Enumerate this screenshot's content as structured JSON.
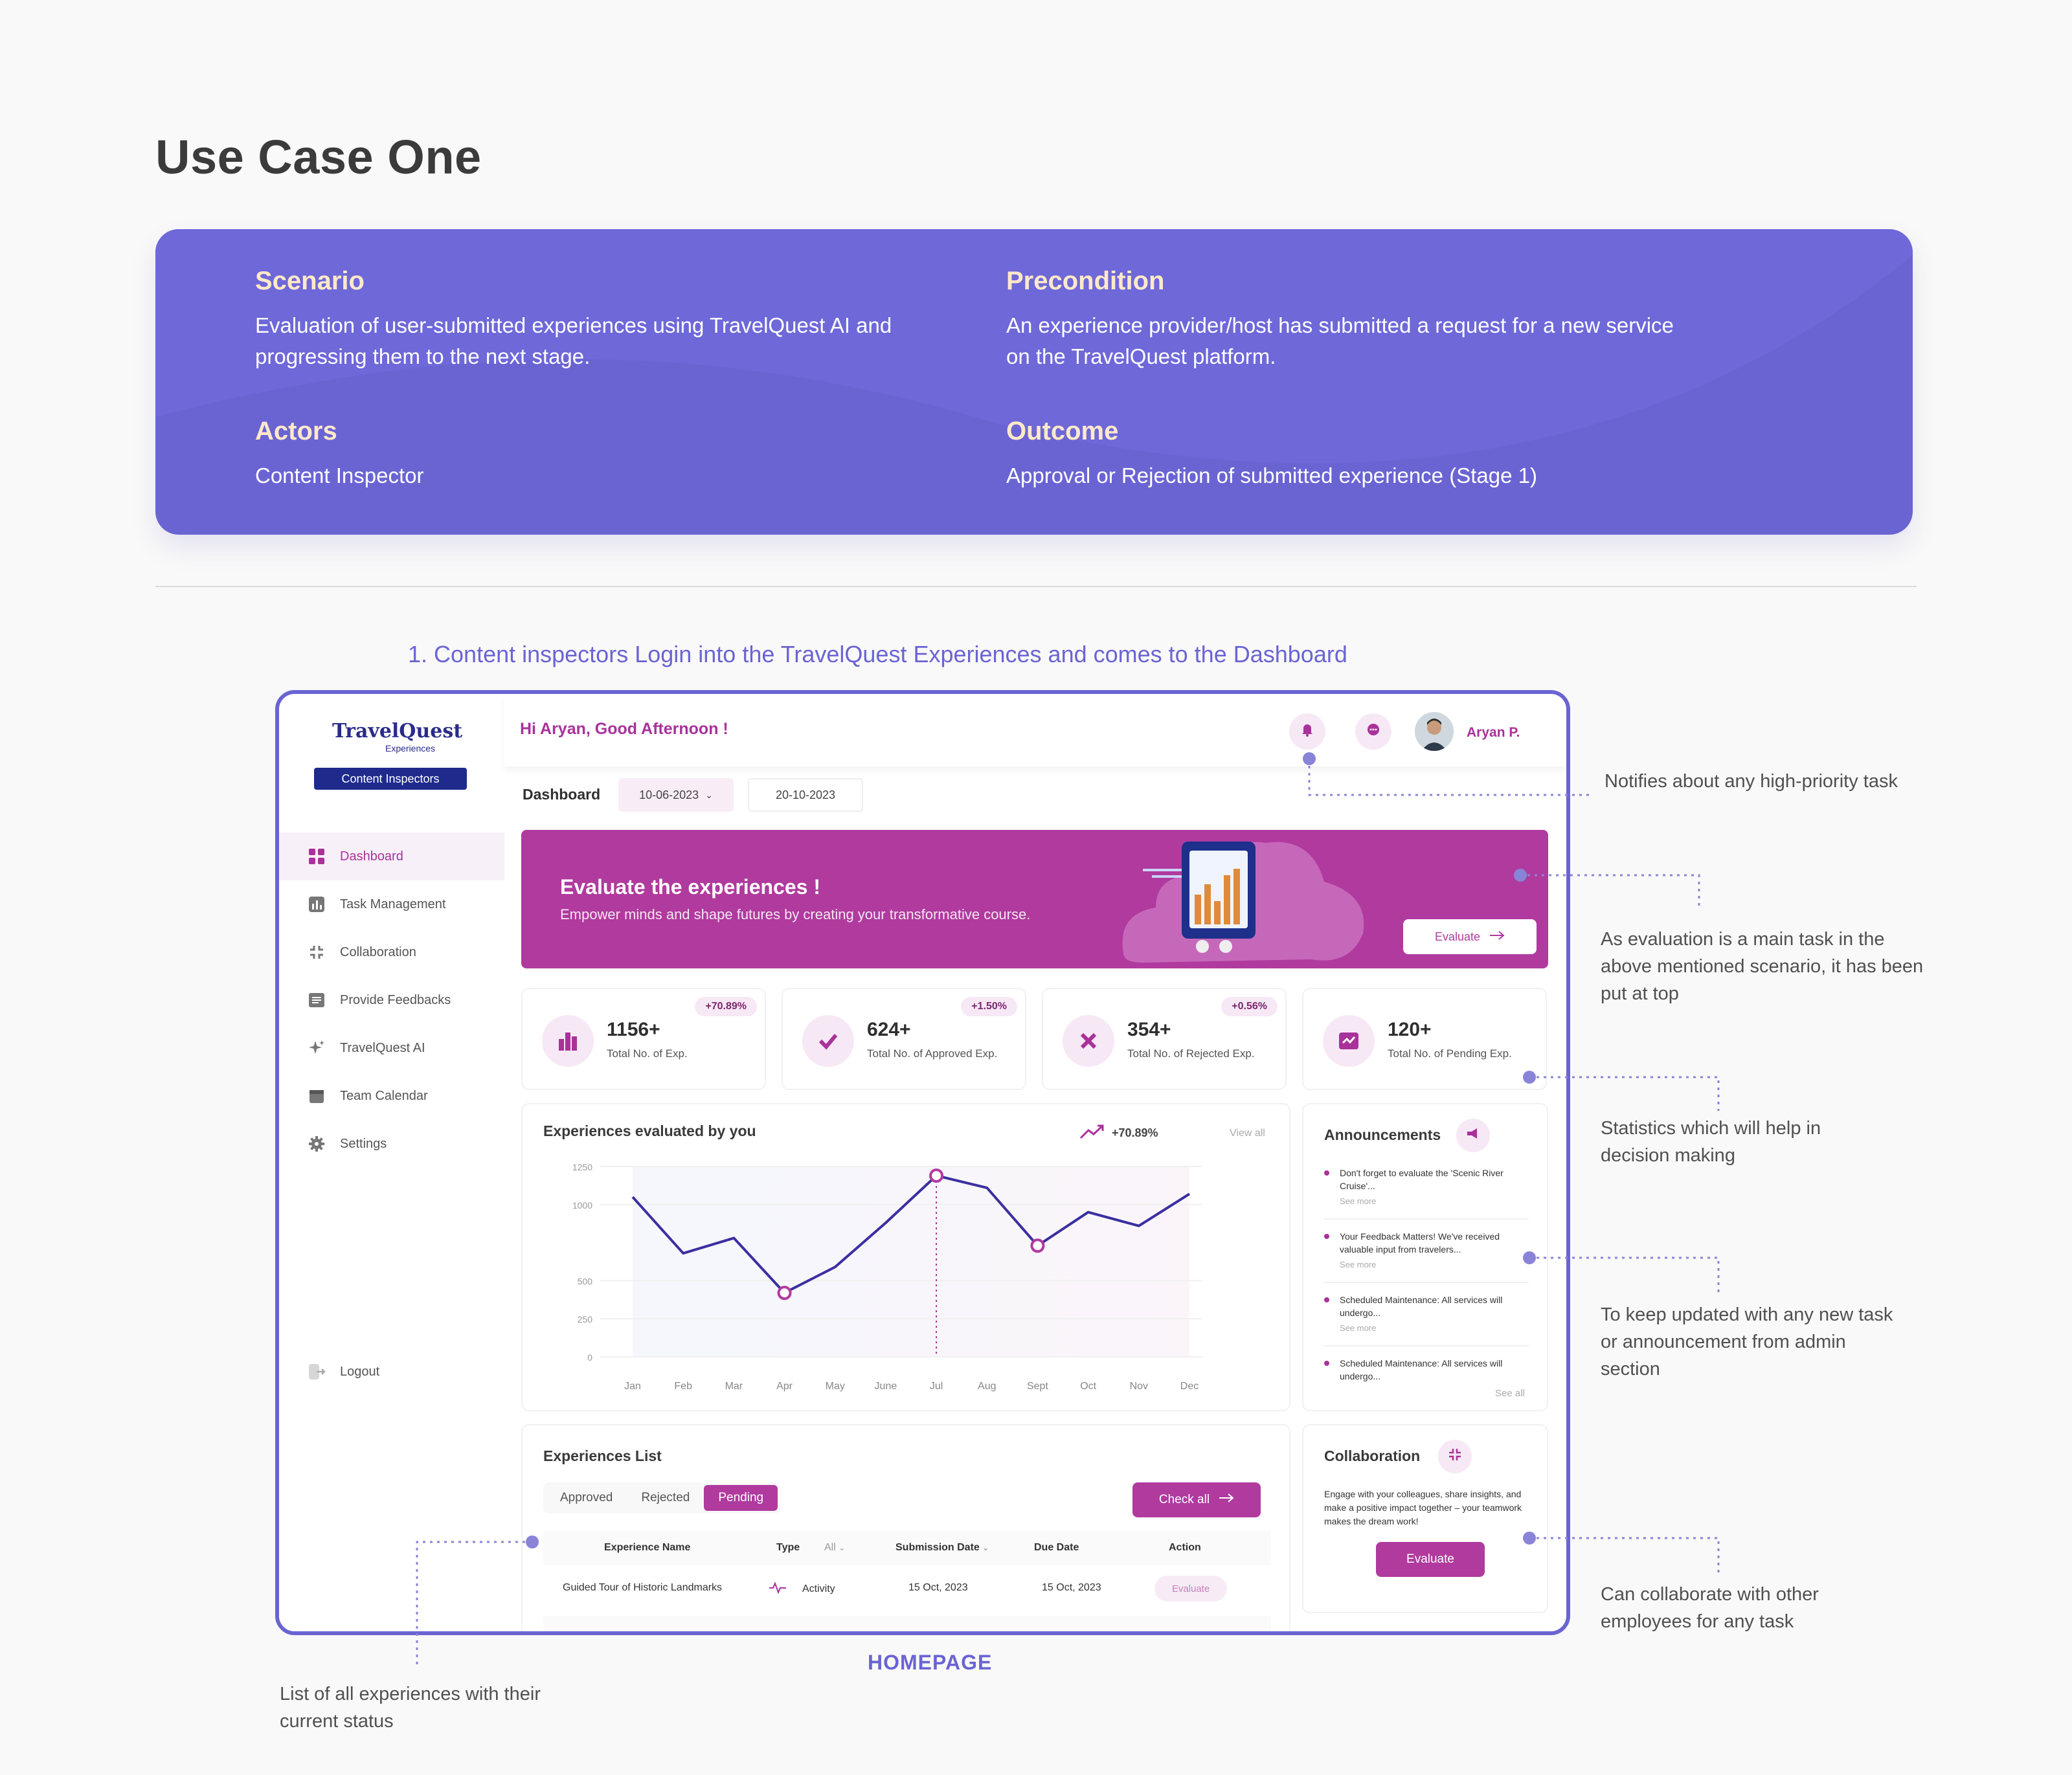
{
  "page_title": "Use Case One",
  "use_case": {
    "scenario_heading": "Scenario",
    "scenario_text": "Evaluation of user-submitted experiences using TravelQuest AI and progressing them to the next stage.",
    "precondition_heading": "Precondition",
    "precondition_text": "An experience provider/host has submitted a request for a new service on the TravelQuest platform.",
    "actors_heading": "Actors",
    "actors_text": "Content Inspector",
    "outcome_heading": "Outcome",
    "outcome_text": "Approval or Rejection of submitted experience (Stage 1)"
  },
  "step_title": "1. Content inspectors Login into the TravelQuest Experiences and comes to the Dashboard",
  "frame_label": "HOMEPAGE",
  "app": {
    "logo_main": "TravelQuest",
    "logo_sub": "Experiences",
    "role_badge": "Content Inspectors",
    "nav": [
      {
        "label": "Dashboard",
        "icon": "grid-icon",
        "active": true
      },
      {
        "label": "Task Management",
        "icon": "bar-chart-icon",
        "active": false
      },
      {
        "label": "Collaboration",
        "icon": "collaboration-icon",
        "active": false
      },
      {
        "label": "Provide Feedbacks",
        "icon": "feedback-icon",
        "active": false
      },
      {
        "label": "TravelQuest AI",
        "icon": "sparkle-icon",
        "active": false
      },
      {
        "label": "Team Calendar",
        "icon": "calendar-icon",
        "active": false
      },
      {
        "label": "Settings",
        "icon": "gear-icon",
        "active": false
      }
    ],
    "logout_label": "Logout",
    "greeting": "Hi Aryan, Good Afternoon !",
    "user_name": "Aryan P.",
    "dashboard_label": "Dashboard",
    "date_from": "10-06-2023",
    "date_to": "20-10-2023",
    "hero": {
      "title": "Evaluate the experiences !",
      "subtitle": "Empower minds and shape futures by creating your transformative course.",
      "button": "Evaluate"
    },
    "stats": [
      {
        "value": "1156+",
        "label": "Total No. of Exp.",
        "change": "+70.89%",
        "icon": "bar-chart-icon"
      },
      {
        "value": "624+",
        "label": "Total No. of Approved Exp.",
        "change": "+1.50%",
        "icon": "check-icon"
      },
      {
        "value": "354+",
        "label": "Total No. of Rejected Exp.",
        "change": "+0.56%",
        "icon": "close-icon"
      },
      {
        "value": "120+",
        "label": "Total No. of Pending Exp.",
        "change": "",
        "icon": "pending-icon"
      }
    ],
    "chart_panel": {
      "title": "Experiences evaluated by you",
      "trend": "+70.89%",
      "view_all": "View all"
    },
    "announcements": {
      "title": "Announcements",
      "items": [
        {
          "text": "Don't forget to evaluate the 'Scenic River Cruise'...",
          "more": "See more"
        },
        {
          "text": "Your Feedback Matters! We've received valuable input from travelers...",
          "more": "See more"
        },
        {
          "text": "Scheduled Maintenance: All services will undergo...",
          "more": "See more"
        },
        {
          "text": "Scheduled Maintenance: All services will undergo...",
          "more": ""
        }
      ],
      "see_all": "See all"
    },
    "experiences_list": {
      "title": "Experiences List",
      "tabs": [
        "Approved",
        "Rejected",
        "Pending"
      ],
      "active_tab": "Pending",
      "check_all": "Check all",
      "columns": {
        "name": "Experience Name",
        "type": "Type",
        "type_filter": "All",
        "submission": "Submission Date",
        "due": "Due Date",
        "action": "Action"
      },
      "rows": [
        {
          "name": "Guided Tour of Historic Landmarks",
          "type": "Activity",
          "submission": "15 Oct, 2023",
          "due": "15 Oct, 2023",
          "action": "Evaluate"
        }
      ]
    },
    "collaboration": {
      "title": "Collaboration",
      "text": "Engage with your colleagues, share insights, and make a positive impact together – your teamwork makes the dream work!",
      "button": "Evaluate"
    }
  },
  "callouts": {
    "notifications": "Notifies about any high-priority task",
    "evaluation": "As evaluation is a main task in the above mentioned scenario, it has been put at top",
    "statistics": "Statistics which will help in decision making",
    "announcements": "To keep updated with any new task or announcement from admin section",
    "collaboration": "Can collaborate with other employees for any task",
    "list": "List of all experiences with their current status"
  },
  "colors": {
    "accent": "#b03a9e",
    "brand_purple": "#6a64d3",
    "navy": "#1e2a8c",
    "line": "#3b2fa0"
  },
  "chart_data": {
    "type": "line",
    "title": "Experiences evaluated by you",
    "categories": [
      "Jan",
      "Feb",
      "Mar",
      "Apr",
      "May",
      "June",
      "Jul",
      "Aug",
      "Sept",
      "Oct",
      "Nov",
      "Dec"
    ],
    "series": [
      {
        "values": [
          1050,
          680,
          780,
          420,
          590,
          880,
          1190,
          1110,
          730,
          950,
          860,
          1070
        ]
      }
    ],
    "yticks": [
      0,
      250,
      500,
      1000,
      1250
    ],
    "ylim": [
      0,
      1250
    ],
    "highlighted_points": [
      "Apr",
      "Jul",
      "Sept"
    ]
  }
}
